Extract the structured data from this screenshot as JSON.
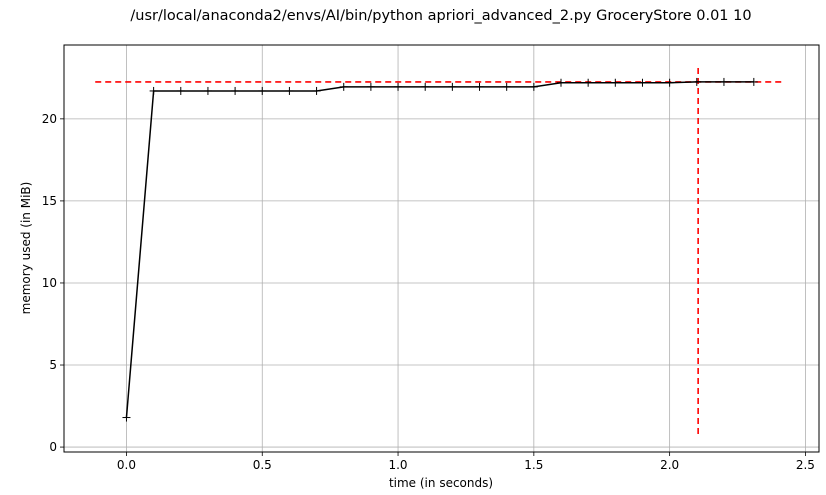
{
  "chart_data": {
    "type": "line",
    "title": "/usr/local/anaconda2/envs/AI/bin/python apriori_advanced_2.py GroceryStore 0.01 10",
    "xlabel": "time (in seconds)",
    "ylabel": "memory used (in MiB)",
    "xlim": [
      -0.23,
      2.55
    ],
    "ylim": [
      -0.3,
      24.5
    ],
    "xticks": [
      0.0,
      0.5,
      1.0,
      1.5,
      2.0,
      2.5
    ],
    "xtick_labels": [
      "0.0",
      "0.5",
      "1.0",
      "1.5",
      "2.0",
      "2.5"
    ],
    "yticks": [
      0,
      5,
      10,
      15,
      20
    ],
    "ytick_labels": [
      "0",
      "5",
      "10",
      "15",
      "20"
    ],
    "grid": true,
    "line_color": "#000000",
    "marker": "+",
    "reference_color": "#ff0000",
    "series": [
      {
        "x": [
          0.0,
          0.1,
          0.2,
          0.3,
          0.4,
          0.5,
          0.6,
          0.7,
          0.8,
          0.9,
          1.0,
          1.1,
          1.2,
          1.3,
          1.4,
          1.5,
          1.6,
          1.7,
          1.8,
          1.9,
          2.0,
          2.1,
          2.2,
          2.31
        ],
        "y": [
          1.8,
          21.7,
          21.7,
          21.7,
          21.7,
          21.7,
          21.7,
          21.7,
          21.95,
          21.95,
          21.95,
          21.95,
          21.95,
          21.95,
          21.95,
          21.95,
          22.2,
          22.2,
          22.2,
          22.2,
          22.2,
          22.25,
          22.25,
          22.25
        ]
      }
    ],
    "reference_lines": {
      "max_memory_y": 22.25,
      "max_memory_x_range": [
        -0.115,
        2.425
      ],
      "max_time_x": 2.105,
      "max_time_y_range": [
        0.8,
        23.3
      ]
    }
  }
}
